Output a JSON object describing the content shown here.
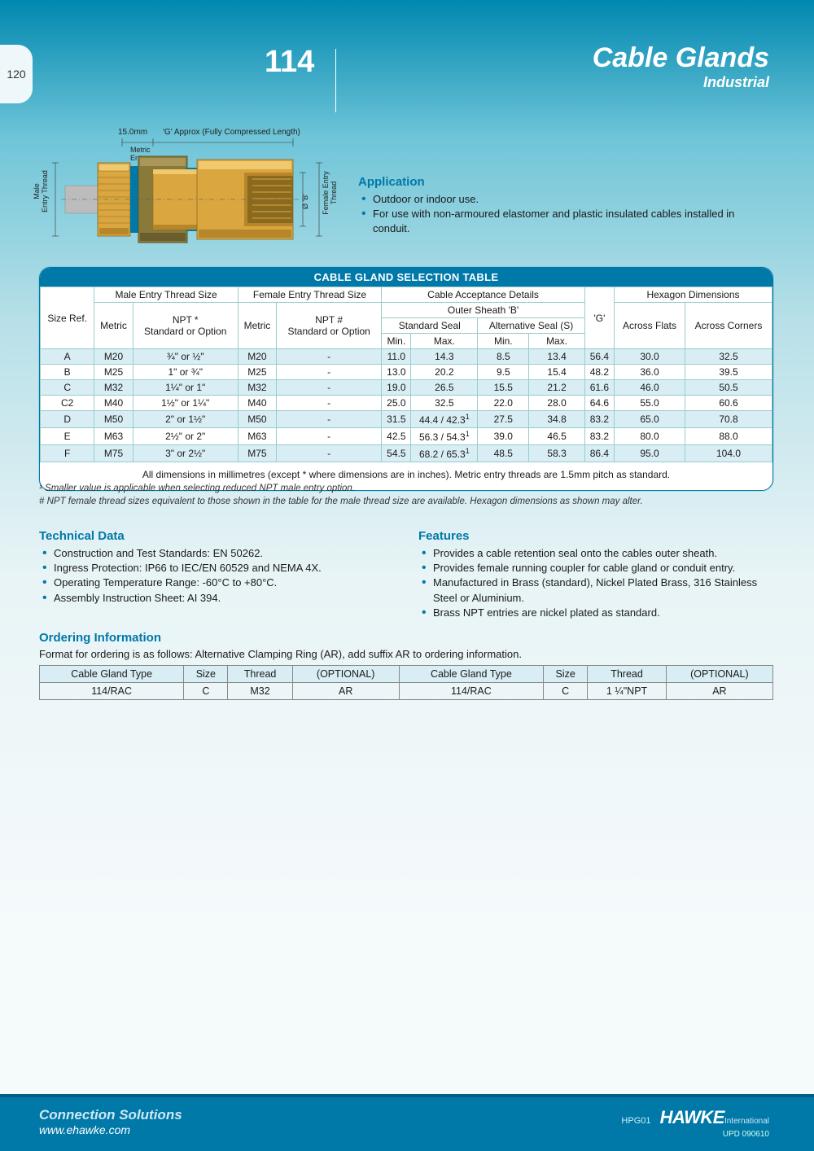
{
  "page_tab": "120",
  "header": {
    "model": "114",
    "title_line1": "Cable Glands",
    "title_line2": "Industrial"
  },
  "diagram": {
    "top_dim": "15.0mm",
    "top_label": "'G' Approx (Fully Compressed Length)",
    "metric_entry": "Metric\nEntry",
    "male_label": "Male\nEntry Thread",
    "female_label": "Female Entry\nThread",
    "ob_label": "Ø 'B'",
    "colors": {
      "brass": "#d9a63f",
      "brass_dark": "#b8862a",
      "brass_light": "#f0c96e",
      "body_olive": "#8a7a3a",
      "seal_blue": "#0078a8",
      "cable_grey": "#bcbcbc"
    }
  },
  "application": {
    "title": "Application",
    "bullets": [
      "Outdoor or indoor use.",
      "For use with non-armoured elastomer and plastic insulated cables installed in conduit."
    ]
  },
  "selection_table": {
    "card_title": "CABLE GLAND SELECTION TABLE",
    "headers": {
      "size_ref": "Size Ref.",
      "male_group": "Male Entry Thread Size",
      "female_group": "Female Entry Thread Size",
      "cable_group": "Cable Acceptance Details",
      "hex_group": "Hexagon Dimensions",
      "metric": "Metric",
      "npt_star": "NPT *\nStandard or Option",
      "npt_hash": "NPT #\nStandard or Option",
      "outer_sheath": "Outer Sheath 'B'",
      "std_seal": "Standard Seal",
      "alt_seal": "Alternative Seal (S)",
      "min": "Min.",
      "max": "Max.",
      "g": "'G'",
      "across_flats": "Across Flats",
      "across_corners": "Across Corners"
    },
    "rows": [
      {
        "ref": "A",
        "m1": "M20",
        "npt1": "¾\" or ½\"",
        "m2": "M20",
        "npt2": "-",
        "smin": "11.0",
        "smax": "14.3",
        "amin": "8.5",
        "amax": "13.4",
        "g": "56.4",
        "af": "30.0",
        "ac": "32.5",
        "zebra": true
      },
      {
        "ref": "B",
        "m1": "M25",
        "npt1": "1\" or ¾\"",
        "m2": "M25",
        "npt2": "-",
        "smin": "13.0",
        "smax": "20.2",
        "amin": "9.5",
        "amax": "15.4",
        "g": "48.2",
        "af": "36.0",
        "ac": "39.5",
        "zebra": false
      },
      {
        "ref": "C",
        "m1": "M32",
        "npt1": "1¼\" or 1\"",
        "m2": "M32",
        "npt2": "-",
        "smin": "19.0",
        "smax": "26.5",
        "amin": "15.5",
        "amax": "21.2",
        "g": "61.6",
        "af": "46.0",
        "ac": "50.5",
        "zebra": true
      },
      {
        "ref": "C2",
        "m1": "M40",
        "npt1": "1½\" or 1¼\"",
        "m2": "M40",
        "npt2": "-",
        "smin": "25.0",
        "smax": "32.5",
        "amin": "22.0",
        "amax": "28.0",
        "g": "64.6",
        "af": "55.0",
        "ac": "60.6",
        "zebra": false
      },
      {
        "ref": "D",
        "m1": "M50",
        "npt1": "2\" or 1½\"",
        "m2": "M50",
        "npt2": "-",
        "smin": "31.5",
        "smax": "44.4 / 42.3¹",
        "amin": "27.5",
        "amax": "34.8",
        "g": "83.2",
        "af": "65.0",
        "ac": "70.8",
        "zebra": true
      },
      {
        "ref": "E",
        "m1": "M63",
        "npt1": "2½\" or 2\"",
        "m2": "M63",
        "npt2": "-",
        "smin": "42.5",
        "smax": "56.3 / 54.3¹",
        "amin": "39.0",
        "amax": "46.5",
        "g": "83.2",
        "af": "80.0",
        "ac": "88.0",
        "zebra": false
      },
      {
        "ref": "F",
        "m1": "M75",
        "npt1": "3\" or 2½\"",
        "m2": "M75",
        "npt2": "-",
        "smin": "54.5",
        "smax": "68.2 / 65.3¹",
        "amin": "48.5",
        "amax": "58.3",
        "g": "86.4",
        "af": "95.0",
        "ac": "104.0",
        "zebra": true
      }
    ],
    "note": "All dimensions in millimetres (except * where dimensions are in inches). Metric entry threads are 1.5mm pitch as standard."
  },
  "footnotes": {
    "fn1": "¹ Smaller value is applicable when selecting reduced NPT male entry option.",
    "fn2": "# NPT female thread sizes equivalent to those shown in the table for the male thread size are available. Hexagon dimensions as shown may alter."
  },
  "technical": {
    "title": "Technical Data",
    "bullets": [
      "Construction and Test Standards: EN 50262.",
      "Ingress Protection: IP66 to IEC/EN 60529 and NEMA 4X.",
      "Operating Temperature Range: -60°C to +80°C.",
      "Assembly Instruction Sheet: AI 394."
    ]
  },
  "features": {
    "title": "Features",
    "bullets": [
      "Provides a cable retention seal onto the cables outer sheath.",
      "Provides female running coupler for cable gland or conduit entry.",
      "Manufactured in Brass (standard), Nickel Plated Brass, 316 Stainless Steel or Aluminium.",
      "Brass NPT entries are nickel plated as standard."
    ]
  },
  "ordering": {
    "title": "Ordering Information",
    "intro": "Format for ordering is as follows: Alternative Clamping Ring (AR), add suffix AR to ordering information.",
    "headers": [
      "Cable Gland Type",
      "Size",
      "Thread",
      "(OPTIONAL)",
      "Cable Gland Type",
      "Size",
      "Thread",
      "(OPTIONAL)"
    ],
    "row": [
      "114/RAC",
      "C",
      "M32",
      "AR",
      "114/RAC",
      "C",
      "1 ¼\"NPT",
      "AR"
    ]
  },
  "footer": {
    "slogan": "Connection Solutions",
    "url": "www.ehawke.com",
    "code": "HPG01",
    "brand": "HAWKE",
    "intl": "International",
    "upd": "UPD 090610"
  }
}
